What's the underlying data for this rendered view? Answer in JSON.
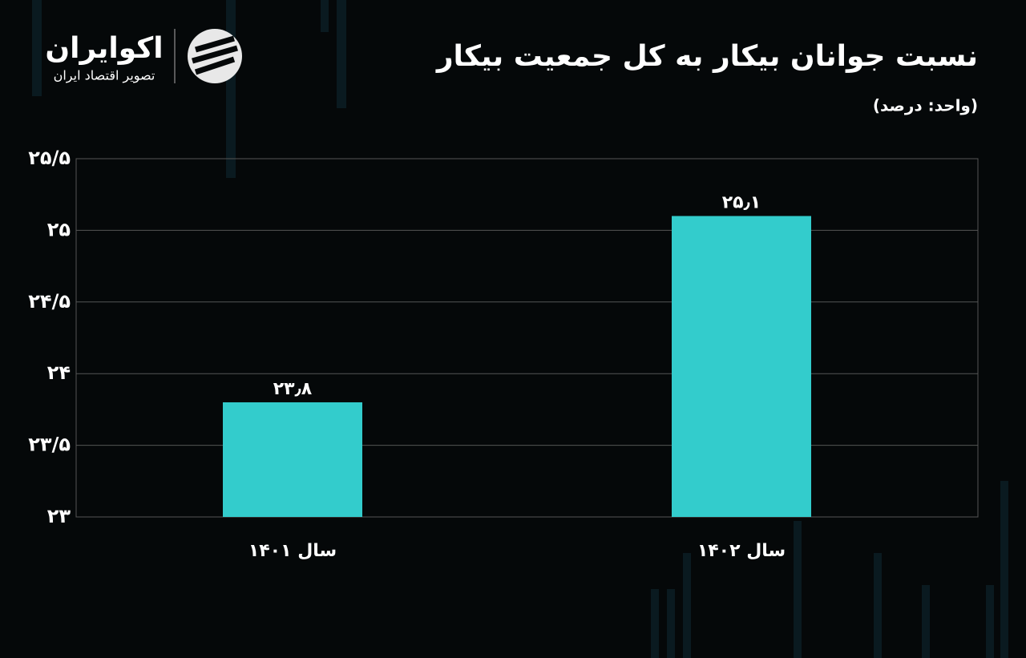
{
  "brand": {
    "name": "اکوایران",
    "tagline": "تصویر اقتصاد ایران"
  },
  "chart_data": {
    "type": "bar",
    "title": "نسبت جوانان بیکار به کل جمعیت بیکار",
    "subtitle": "(واحد: درصد)",
    "categories": [
      "سال ۱۴۰۱",
      "سال ۱۴۰۲"
    ],
    "values": [
      23.8,
      25.1
    ],
    "value_labels": [
      "۲۳٫۸",
      "۲۵٫۱"
    ],
    "color": "#33cccc",
    "ylim": [
      23,
      25.5
    ],
    "yticks": [
      {
        "value": 23,
        "label": "۲۳"
      },
      {
        "value": 23.5,
        "label": "۲۳/۵"
      },
      {
        "value": 24,
        "label": "۲۴"
      },
      {
        "value": 24.5,
        "label": "۲۴/۵"
      },
      {
        "value": 25,
        "label": "۲۵"
      },
      {
        "value": 25.5,
        "label": "۲۵/۵"
      }
    ],
    "grid": true
  }
}
